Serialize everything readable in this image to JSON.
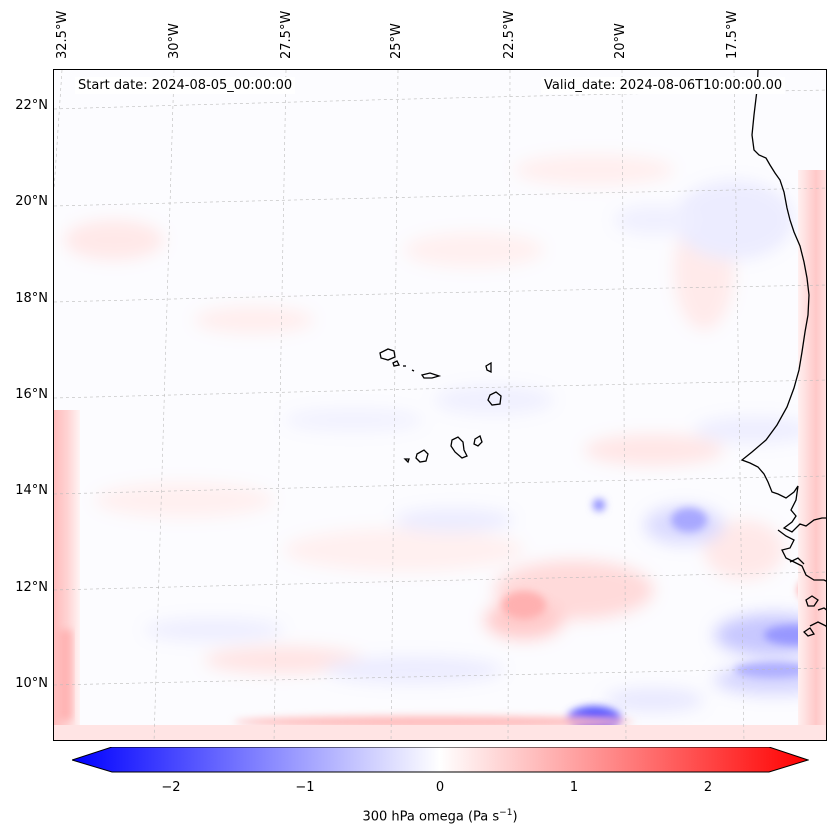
{
  "header": {
    "start_date": "Start date: 2024-08-05_00:00:00",
    "valid_date": "Valid_date: 2024-08-06T10:00:00.00"
  },
  "axes": {
    "longitude_labels": [
      "32.5°W",
      "30°W",
      "27.5°W",
      "25°W",
      "22.5°W",
      "20°W",
      "17.5°W"
    ],
    "latitude_labels": [
      "22°N",
      "20°N",
      "18°N",
      "16°N",
      "14°N",
      "12°N",
      "10°N"
    ]
  },
  "colorbar": {
    "ticks": [
      "−2",
      "−1",
      "0",
      "1",
      "2"
    ],
    "label": "300 hPa omega (Pa s",
    "label_sup": "−1",
    "label_end": ")",
    "min_color": "#0000ff",
    "mid_color": "#ffffff",
    "max_color": "#ff0000"
  },
  "map": {
    "field": "300 hPa omega",
    "coastline_color": "#000000",
    "gridline_color": "#bbbbbb"
  }
}
